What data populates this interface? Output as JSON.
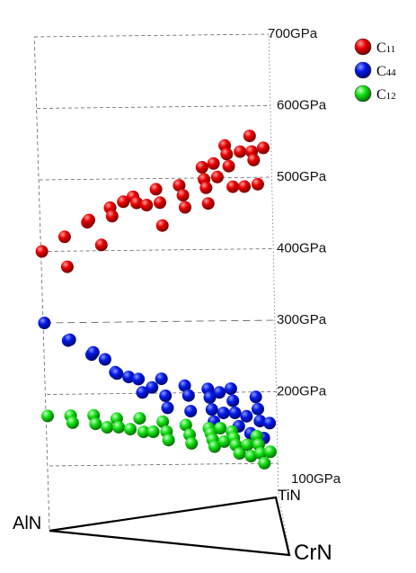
{
  "chart_data": {
    "type": "scatter",
    "title": "",
    "colors": {
      "C11": "#e00000",
      "C44": "#0010e0",
      "C12": "#10e010"
    },
    "legend": {
      "placement": "top-right",
      "entries": [
        {
          "key": "C11",
          "label": "C",
          "sub": "11"
        },
        {
          "key": "C44",
          "label": "C",
          "sub": "44"
        },
        {
          "key": "C12",
          "label": "C",
          "sub": "12"
        }
      ]
    },
    "z_axis": {
      "ticks": [
        {
          "value": 100,
          "label": "100GPa"
        },
        {
          "value": 200,
          "label": "200GPa"
        },
        {
          "value": 300,
          "label": "300GPa"
        },
        {
          "value": 400,
          "label": "400GPa"
        },
        {
          "value": 500,
          "label": "500GPa"
        },
        {
          "value": 600,
          "label": "600GPa"
        },
        {
          "value": 700,
          "label": "700GPa"
        }
      ],
      "range": [
        100,
        700
      ]
    },
    "vertices": [
      {
        "key": "AlN",
        "label": "AlN"
      },
      {
        "key": "TiN",
        "label": "TiN"
      },
      {
        "key": "CrN",
        "label": "CrN"
      }
    ],
    "series": [
      {
        "key": "C11",
        "points": [
          [
            0,
            0,
            400
          ],
          [
            0.1,
            0,
            420
          ],
          [
            0.1,
            0.05,
            380
          ],
          [
            0.2,
            0,
            440
          ],
          [
            0.2,
            0.05,
            445
          ],
          [
            0.25,
            0.05,
            410
          ],
          [
            0.3,
            0,
            460
          ],
          [
            0.3,
            0.05,
            450
          ],
          [
            0.35,
            0.05,
            470
          ],
          [
            0.4,
            0,
            475
          ],
          [
            0.4,
            0.1,
            470
          ],
          [
            0.45,
            0.05,
            465
          ],
          [
            0.5,
            0,
            485
          ],
          [
            0.5,
            0.1,
            470
          ],
          [
            0.5,
            0.15,
            440
          ],
          [
            0.6,
            0,
            490
          ],
          [
            0.6,
            0.1,
            480
          ],
          [
            0.6,
            0.15,
            465
          ],
          [
            0.7,
            0,
            515
          ],
          [
            0.7,
            0.05,
            500
          ],
          [
            0.7,
            0.1,
            490
          ],
          [
            0.7,
            0.15,
            470
          ],
          [
            0.75,
            0,
            520
          ],
          [
            0.75,
            0.1,
            505
          ],
          [
            0.8,
            0,
            545
          ],
          [
            0.8,
            0.05,
            535
          ],
          [
            0.8,
            0.1,
            520
          ],
          [
            0.8,
            0.2,
            495
          ],
          [
            0.85,
            0.1,
            540
          ],
          [
            0.85,
            0.2,
            495
          ],
          [
            0.9,
            0.05,
            560
          ],
          [
            0.9,
            0.1,
            540
          ],
          [
            0.9,
            0.15,
            530
          ],
          [
            0.9,
            0.25,
            500
          ],
          [
            0.95,
            0.1,
            545
          ]
        ]
      },
      {
        "key": "C44",
        "points": [
          [
            0,
            0,
            300
          ],
          [
            0.1,
            0,
            275
          ],
          [
            0.1,
            0.05,
            278
          ],
          [
            0.2,
            0,
            255
          ],
          [
            0.2,
            0.05,
            260
          ],
          [
            0.25,
            0.05,
            250
          ],
          [
            0.3,
            0,
            230
          ],
          [
            0.3,
            0.05,
            230
          ],
          [
            0.35,
            0.05,
            225
          ],
          [
            0.4,
            0,
            220
          ],
          [
            0.4,
            0.1,
            205
          ],
          [
            0.45,
            0.05,
            210
          ],
          [
            0.5,
            0,
            220
          ],
          [
            0.5,
            0.1,
            200
          ],
          [
            0.5,
            0.15,
            185
          ],
          [
            0.6,
            0,
            210
          ],
          [
            0.6,
            0.1,
            200
          ],
          [
            0.6,
            0.15,
            180
          ],
          [
            0.7,
            0,
            205
          ],
          [
            0.7,
            0.05,
            195
          ],
          [
            0.7,
            0.1,
            180
          ],
          [
            0.7,
            0.15,
            165
          ],
          [
            0.75,
            0,
            200
          ],
          [
            0.75,
            0.1,
            175
          ],
          [
            0.8,
            0,
            205
          ],
          [
            0.8,
            0.05,
            190
          ],
          [
            0.8,
            0.1,
            175
          ],
          [
            0.8,
            0.2,
            160
          ],
          [
            0.85,
            0.1,
            170
          ],
          [
            0.85,
            0.2,
            150
          ],
          [
            0.9,
            0.05,
            195
          ],
          [
            0.9,
            0.1,
            180
          ],
          [
            0.9,
            0.15,
            165
          ],
          [
            0.9,
            0.25,
            145
          ],
          [
            0.95,
            0.1,
            160
          ]
        ]
      },
      {
        "key": "C12",
        "points": [
          [
            0,
            0,
            170
          ],
          [
            0.1,
            0,
            170
          ],
          [
            0.1,
            0.05,
            162
          ],
          [
            0.2,
            0,
            170
          ],
          [
            0.2,
            0.05,
            160
          ],
          [
            0.25,
            0.05,
            155
          ],
          [
            0.3,
            0,
            165
          ],
          [
            0.3,
            0.05,
            155
          ],
          [
            0.35,
            0.05,
            152
          ],
          [
            0.4,
            0,
            165
          ],
          [
            0.4,
            0.1,
            150
          ],
          [
            0.45,
            0.05,
            148
          ],
          [
            0.5,
            0,
            160
          ],
          [
            0.5,
            0.1,
            150
          ],
          [
            0.5,
            0.15,
            140
          ],
          [
            0.6,
            0,
            155
          ],
          [
            0.6,
            0.1,
            145
          ],
          [
            0.6,
            0.15,
            135
          ],
          [
            0.7,
            0,
            150
          ],
          [
            0.7,
            0.05,
            145
          ],
          [
            0.7,
            0.1,
            138
          ],
          [
            0.7,
            0.15,
            130
          ],
          [
            0.75,
            0,
            150
          ],
          [
            0.75,
            0.1,
            135
          ],
          [
            0.8,
            0,
            145
          ],
          [
            0.8,
            0.05,
            138
          ],
          [
            0.8,
            0.1,
            130
          ],
          [
            0.8,
            0.2,
            122
          ],
          [
            0.85,
            0.1,
            130
          ],
          [
            0.85,
            0.2,
            118
          ],
          [
            0.9,
            0.05,
            140
          ],
          [
            0.9,
            0.1,
            130
          ],
          [
            0.9,
            0.15,
            120
          ],
          [
            0.9,
            0.25,
            110
          ],
          [
            0.95,
            0.1,
            120
          ]
        ]
      }
    ]
  }
}
